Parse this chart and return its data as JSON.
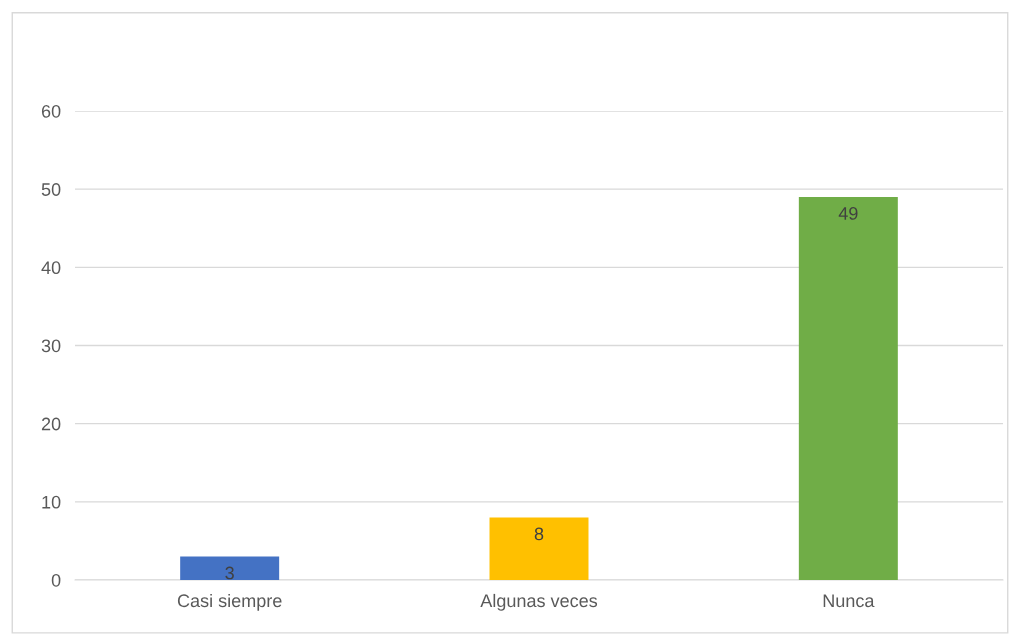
{
  "chart_data": {
    "type": "bar",
    "categories": [
      "Casi siempre",
      "Algunas veces",
      "Nunca"
    ],
    "values": [
      3,
      8,
      49
    ],
    "colors": [
      "#4472c4",
      "#ffc000",
      "#70ad47"
    ],
    "ylim": [
      0,
      60
    ],
    "yticks": [
      0,
      10,
      20,
      30,
      40,
      50,
      60
    ],
    "grid": "y",
    "data_labels": true
  }
}
